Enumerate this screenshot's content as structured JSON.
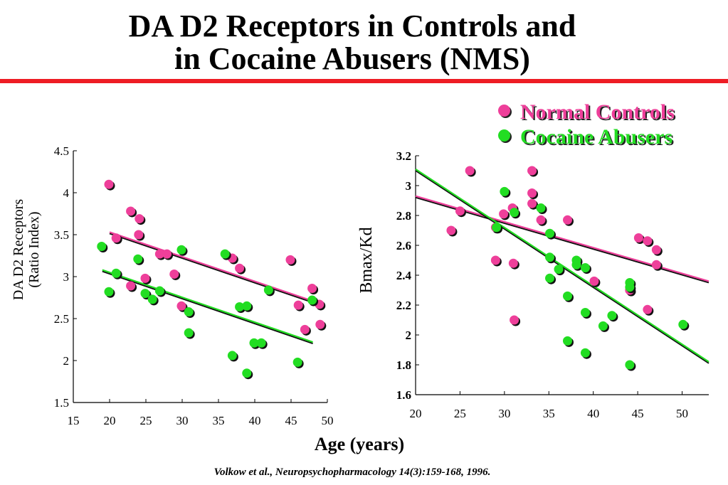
{
  "title": {
    "line1": "DA D2 Receptors in Controls and",
    "line2": "in Cocaine Abusers (NMS)"
  },
  "legend": [
    {
      "label": "Normal Controls",
      "color": "#ee3f9a"
    },
    {
      "label": "Cocaine Abusers",
      "color": "#22dd22"
    }
  ],
  "shared_xlabel": "Age (years)",
  "citation": "Volkow et al., Neuropsychopharmacology 14(3):159-168, 1996.",
  "colors": {
    "controls": "#ee3f9a",
    "abusers": "#22dd22",
    "accent_rule": "#ee1c24"
  },
  "chart_data": [
    {
      "type": "scatter",
      "ylabel": [
        "DA D2 Receptors",
        "(Ratio Index)"
      ],
      "xlim": [
        15,
        50
      ],
      "ylim": [
        1.5,
        4.5
      ],
      "xticks": [
        "15",
        "20",
        "25",
        "30",
        "35",
        "40",
        "45",
        "50"
      ],
      "xtick_values": [
        15,
        20,
        25,
        30,
        35,
        40,
        45,
        50
      ],
      "yticks": [
        "1.5",
        "2",
        "2.5",
        "3",
        "3.5",
        "4",
        "4.5"
      ],
      "ytick_values": [
        1.5,
        2,
        2.5,
        3,
        3.5,
        4,
        4.5
      ],
      "series": [
        {
          "name": "Normal Controls",
          "points": [
            [
              19.9,
              4.1
            ],
            [
              20.9,
              3.46
            ],
            [
              22.9,
              3.78
            ],
            [
              24.1,
              3.69
            ],
            [
              24.0,
              3.5
            ],
            [
              22.9,
              2.89
            ],
            [
              24.9,
              2.98
            ],
            [
              26.9,
              3.27
            ],
            [
              27.9,
              3.27
            ],
            [
              28.9,
              3.03
            ],
            [
              29.9,
              2.65
            ],
            [
              36.9,
              3.22
            ],
            [
              37.9,
              3.1
            ],
            [
              44.9,
              3.2
            ],
            [
              46.0,
              2.66
            ],
            [
              46.9,
              2.37
            ],
            [
              47.9,
              2.86
            ],
            [
              48.9,
              2.67
            ],
            [
              49.0,
              2.43
            ]
          ],
          "fit": [
            [
              20,
              3.53
            ],
            [
              49,
              2.68
            ]
          ]
        },
        {
          "name": "Cocaine Abusers",
          "points": [
            [
              18.9,
              3.36
            ],
            [
              19.9,
              2.82
            ],
            [
              20.9,
              3.04
            ],
            [
              23.9,
              3.21
            ],
            [
              24.9,
              2.8
            ],
            [
              25.9,
              2.73
            ],
            [
              26.9,
              2.83
            ],
            [
              29.9,
              3.32
            ],
            [
              30.9,
              2.58
            ],
            [
              30.9,
              2.33
            ],
            [
              35.9,
              3.27
            ],
            [
              36.9,
              2.06
            ],
            [
              37.9,
              2.64
            ],
            [
              38.9,
              2.65
            ],
            [
              38.9,
              1.85
            ],
            [
              39.9,
              2.21
            ],
            [
              40.9,
              2.21
            ],
            [
              41.9,
              2.84
            ],
            [
              45.9,
              1.98
            ],
            [
              47.9,
              2.72
            ]
          ],
          "fit": [
            [
              19,
              3.08
            ],
            [
              48,
              2.22
            ]
          ]
        }
      ]
    },
    {
      "type": "scatter",
      "ylabel": [
        "Bmax/Kd"
      ],
      "xlim": [
        20,
        53
      ],
      "ylim": [
        1.6,
        3.2
      ],
      "xticks": [
        "20",
        "25",
        "30",
        "35",
        "40",
        "45",
        "50"
      ],
      "xtick_values": [
        20,
        25,
        30,
        35,
        40,
        45,
        50
      ],
      "yticks": [
        "1.6",
        "1.8",
        "2",
        "2.2",
        "2.4",
        "2.6",
        "2.8",
        "3",
        "3.2"
      ],
      "ytick_values": [
        1.6,
        1.8,
        2.0,
        2.2,
        2.4,
        2.6,
        2.8,
        3.0,
        3.2
      ],
      "series": [
        {
          "name": "Normal Controls",
          "points": [
            [
              24.0,
              2.7
            ],
            [
              25.0,
              2.83
            ],
            [
              26.1,
              3.1
            ],
            [
              29.0,
              2.72
            ],
            [
              29.9,
              2.81
            ],
            [
              30.9,
              2.85
            ],
            [
              29.0,
              2.5
            ],
            [
              31.0,
              2.48
            ],
            [
              31.1,
              2.1
            ],
            [
              33.1,
              3.1
            ],
            [
              33.1,
              2.95
            ],
            [
              33.1,
              2.88
            ],
            [
              34.1,
              2.77
            ],
            [
              37.1,
              2.77
            ],
            [
              40.1,
              2.36
            ],
            [
              44.1,
              2.3
            ],
            [
              44.1,
              2.3
            ],
            [
              45.1,
              2.65
            ],
            [
              46.1,
              2.63
            ],
            [
              46.1,
              2.17
            ],
            [
              47.1,
              2.57
            ],
            [
              47.1,
              2.47
            ]
          ],
          "fit": [
            [
              20,
              2.93
            ],
            [
              53,
              2.36
            ]
          ]
        },
        {
          "name": "Cocaine Abusers",
          "points": [
            [
              30.0,
              2.96
            ],
            [
              29.1,
              2.72
            ],
            [
              31.1,
              2.82
            ],
            [
              34.1,
              2.85
            ],
            [
              35.1,
              2.68
            ],
            [
              35.1,
              2.52
            ],
            [
              35.1,
              2.38
            ],
            [
              36.1,
              2.44
            ],
            [
              37.1,
              2.26
            ],
            [
              37.1,
              1.96
            ],
            [
              38.1,
              2.5
            ],
            [
              38.1,
              2.47
            ],
            [
              39.1,
              2.45
            ],
            [
              39.1,
              2.15
            ],
            [
              39.1,
              1.88
            ],
            [
              41.1,
              2.06
            ],
            [
              42.1,
              2.13
            ],
            [
              44.1,
              2.35
            ],
            [
              44.1,
              2.32
            ],
            [
              44.1,
              1.8
            ],
            [
              50.1,
              2.07
            ]
          ],
          "fit": [
            [
              20,
              3.11
            ],
            [
              53,
              1.82
            ]
          ]
        }
      ]
    }
  ]
}
